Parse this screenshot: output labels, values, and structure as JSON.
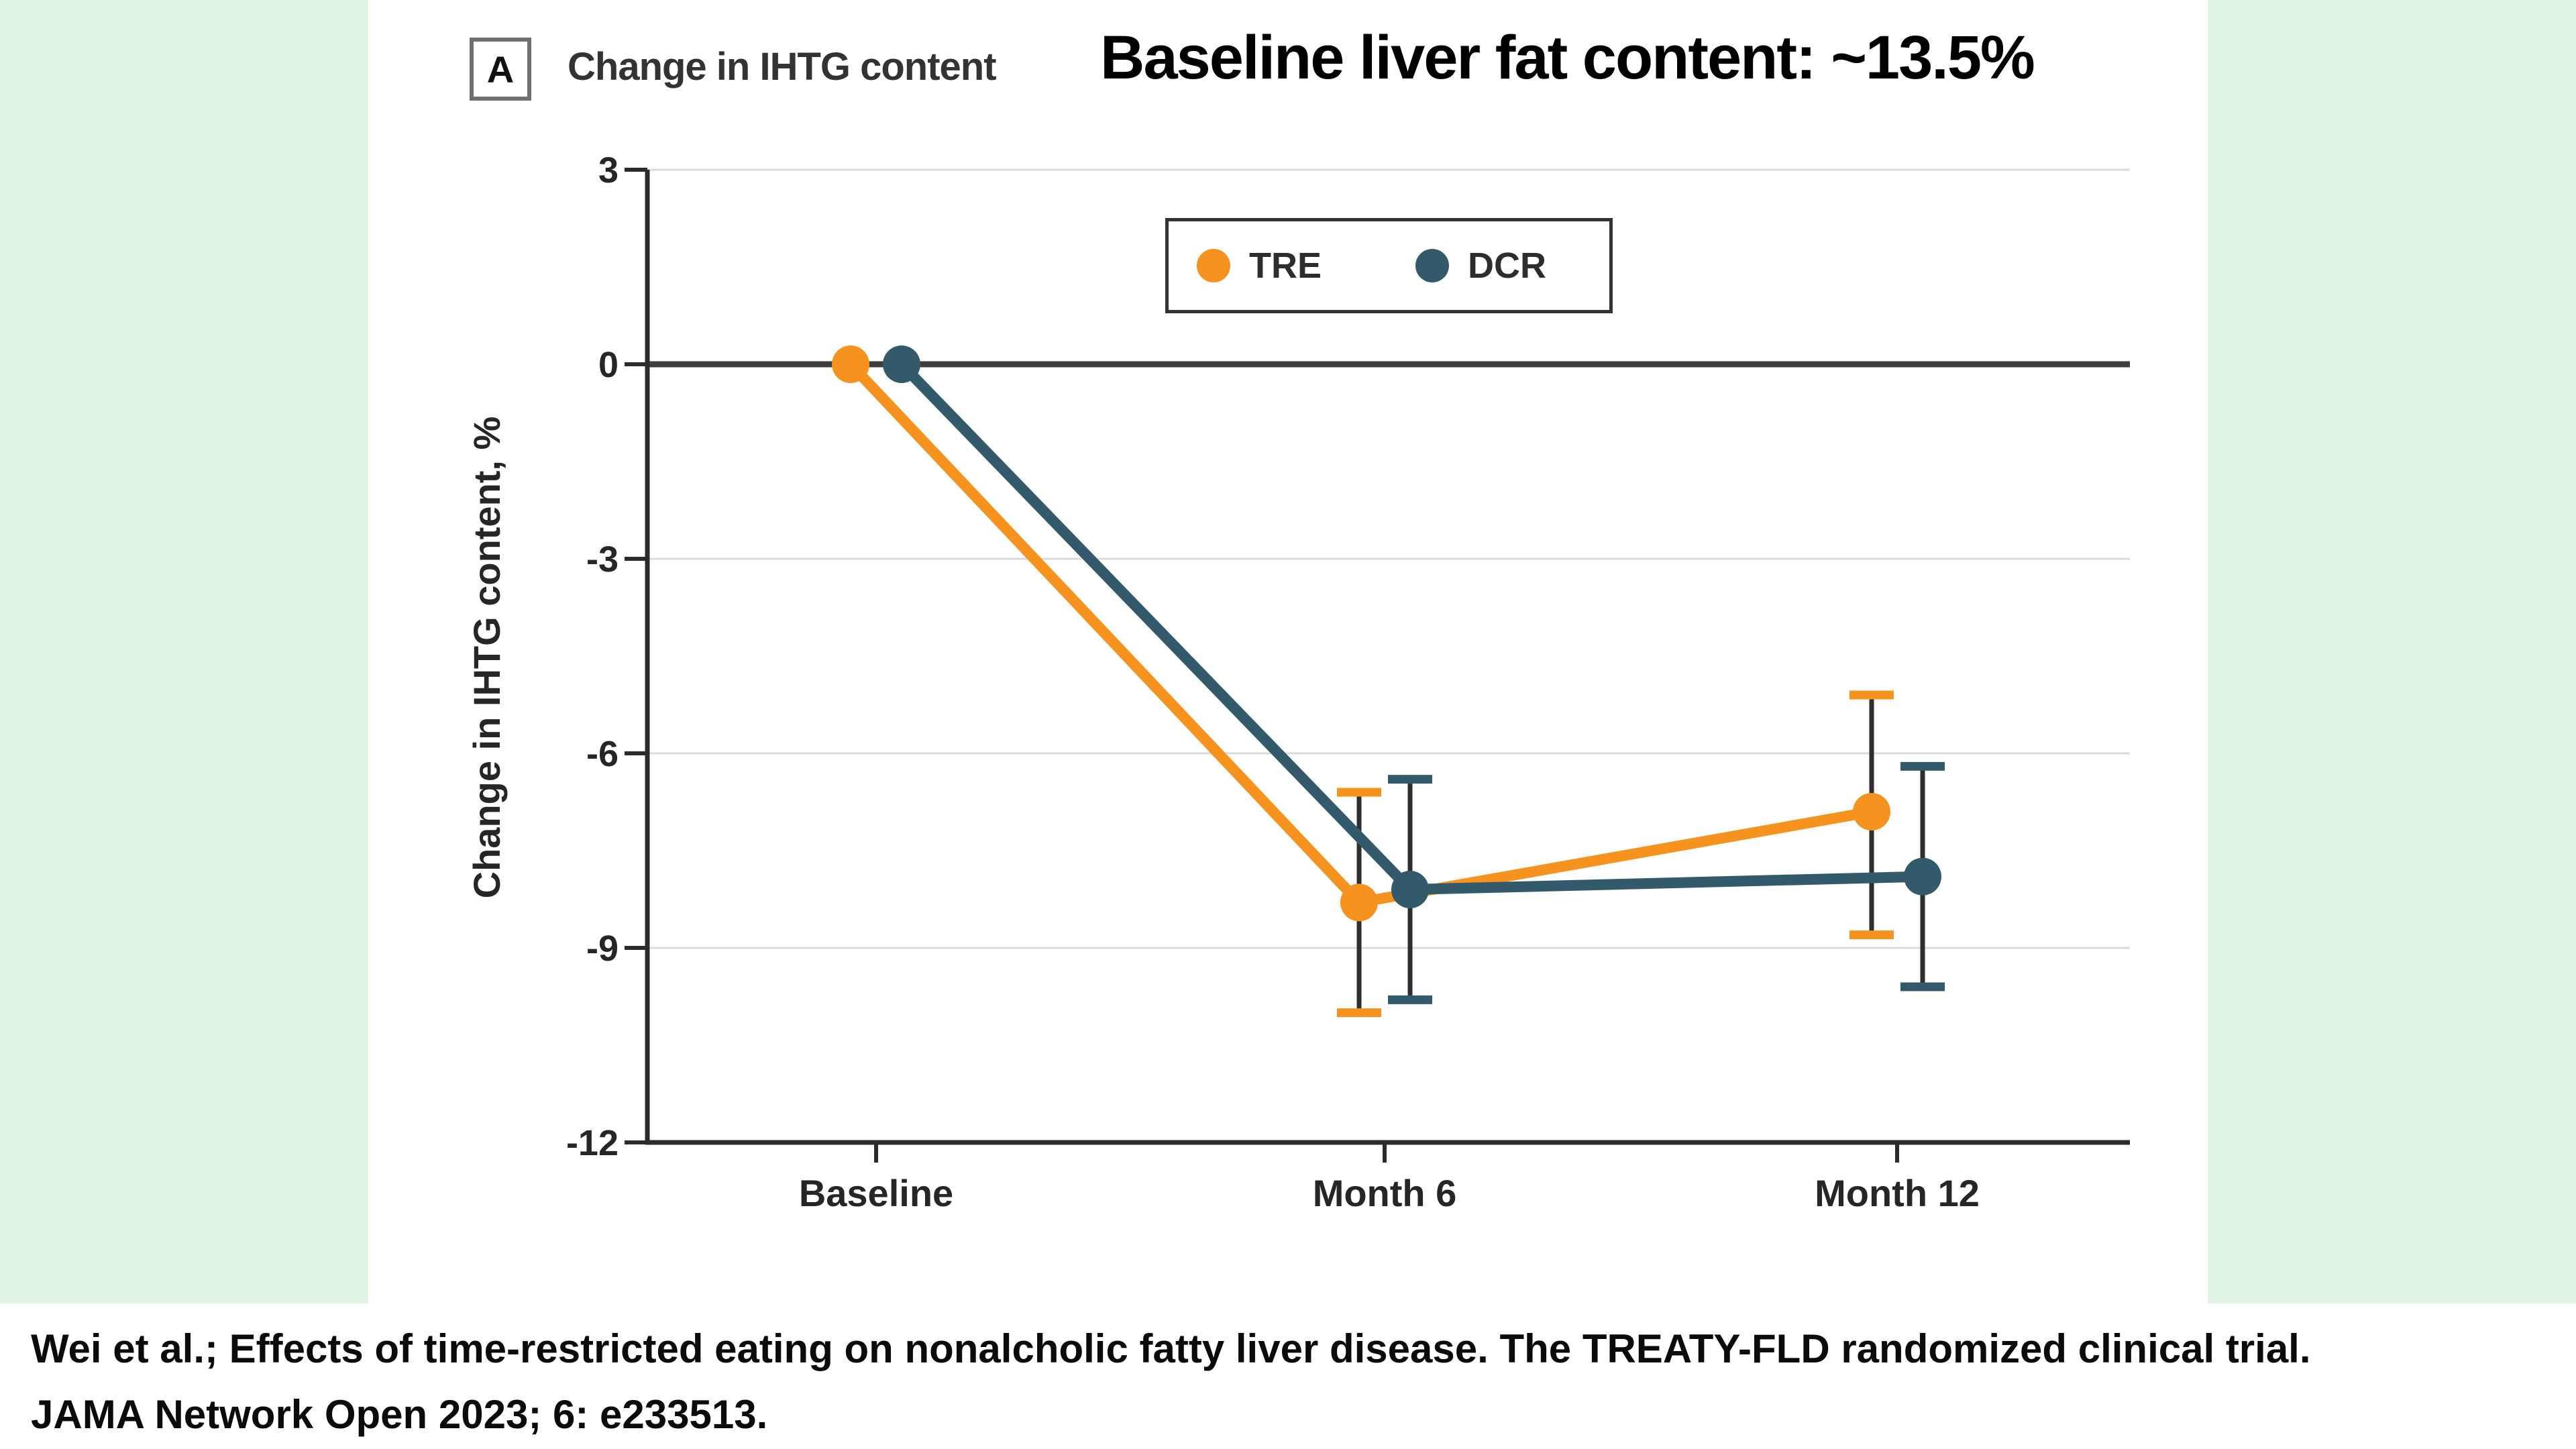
{
  "figure": {
    "panel_label": "A",
    "panel_header": "Change in IHTG content",
    "title": "Baseline liver fat content: ~13.5%",
    "citation_line1": "Wei et al.; Effects of time-restricted eating on nonalcholic fatty liver disease. The TREATY-FLD randomized clinical trial.",
    "citation_line2": "JAMA Network Open 2023; 6: e233513."
  },
  "colors": {
    "tre": "#F6921E",
    "dcr": "#335A6B",
    "green_bg": "#E1F3E2",
    "grid": "#DBDBDB",
    "zero_line": "#3E3E3E",
    "axis": "#2B2B2B",
    "error_stem": "#2F2F2F",
    "text": "#262626"
  },
  "chart_data": {
    "type": "line",
    "categories": [
      "Baseline",
      "Month 6",
      "Month 12"
    ],
    "xlabel": "",
    "ylabel": "Change in IHTG content, %",
    "ylim": [
      -12,
      3
    ],
    "yticks": [
      3,
      0,
      -3,
      -6,
      -9,
      -12
    ],
    "grid": true,
    "legend_position": "top-center-inside",
    "series": [
      {
        "name": "TRE",
        "color": "#F6921E",
        "values": [
          0,
          -8.3,
          -6.9
        ],
        "ci_low": [
          null,
          -10.0,
          -8.8
        ],
        "ci_high": [
          null,
          -6.6,
          -5.1
        ]
      },
      {
        "name": "DCR",
        "color": "#335A6B",
        "values": [
          0,
          -8.1,
          -7.9
        ],
        "ci_low": [
          null,
          -9.8,
          -9.6
        ],
        "ci_high": [
          null,
          -6.4,
          -6.2
        ]
      }
    ]
  }
}
